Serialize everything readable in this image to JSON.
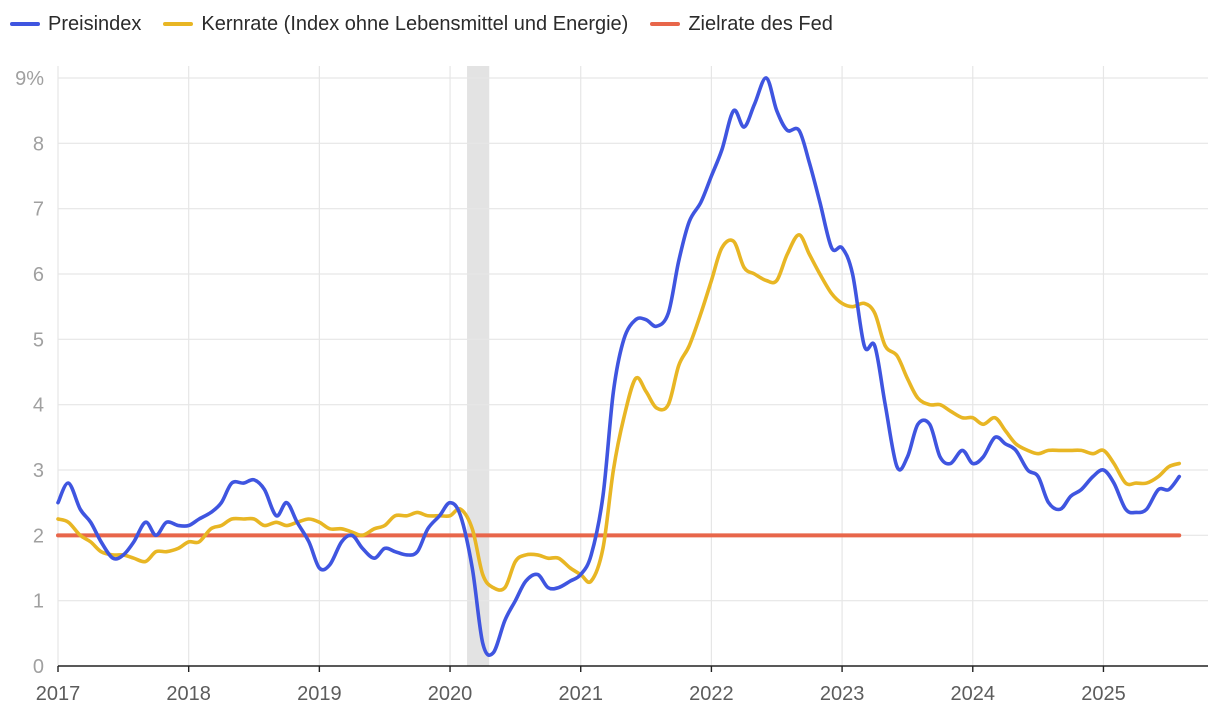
{
  "legend": {
    "items": [
      {
        "label": "Preisindex",
        "color": "#3f55e0"
      },
      {
        "label": "Kernrate (Index ohne Lebensmittel und Energie)",
        "color": "#e8b624"
      },
      {
        "label": "Zielrate des Fed",
        "color": "#e8664a"
      }
    ]
  },
  "chart_data": {
    "type": "line",
    "title": "",
    "xlabel": "",
    "ylabel": "",
    "ylim": [
      0,
      9
    ],
    "xlim": [
      2017.0,
      2025.8
    ],
    "grid": true,
    "legend_position": "top-left",
    "y_ticks": [
      "0",
      "1",
      "2",
      "3",
      "4",
      "5",
      "6",
      "7",
      "8",
      "9%"
    ],
    "x_ticks": [
      "2017",
      "2018",
      "2019",
      "2020",
      "2021",
      "2022",
      "2023",
      "2024",
      "2025"
    ],
    "recession_band": {
      "start": 2020.13,
      "end": 2020.3
    },
    "series": [
      {
        "name": "Preisindex",
        "color": "#3f55e0",
        "points": [
          [
            2017.0,
            2.5
          ],
          [
            2017.08,
            2.8
          ],
          [
            2017.17,
            2.4
          ],
          [
            2017.25,
            2.2
          ],
          [
            2017.33,
            1.9
          ],
          [
            2017.42,
            1.65
          ],
          [
            2017.5,
            1.7
          ],
          [
            2017.58,
            1.9
          ],
          [
            2017.67,
            2.2
          ],
          [
            2017.75,
            2.0
          ],
          [
            2017.83,
            2.2
          ],
          [
            2017.92,
            2.15
          ],
          [
            2018.0,
            2.15
          ],
          [
            2018.08,
            2.25
          ],
          [
            2018.17,
            2.35
          ],
          [
            2018.25,
            2.5
          ],
          [
            2018.33,
            2.8
          ],
          [
            2018.42,
            2.8
          ],
          [
            2018.5,
            2.85
          ],
          [
            2018.58,
            2.7
          ],
          [
            2018.67,
            2.3
          ],
          [
            2018.75,
            2.5
          ],
          [
            2018.83,
            2.2
          ],
          [
            2018.92,
            1.9
          ],
          [
            2019.0,
            1.5
          ],
          [
            2019.08,
            1.55
          ],
          [
            2019.17,
            1.9
          ],
          [
            2019.25,
            2.0
          ],
          [
            2019.33,
            1.8
          ],
          [
            2019.42,
            1.65
          ],
          [
            2019.5,
            1.8
          ],
          [
            2019.58,
            1.75
          ],
          [
            2019.67,
            1.7
          ],
          [
            2019.75,
            1.75
          ],
          [
            2019.83,
            2.1
          ],
          [
            2019.92,
            2.3
          ],
          [
            2020.0,
            2.5
          ],
          [
            2020.08,
            2.3
          ],
          [
            2020.17,
            1.5
          ],
          [
            2020.25,
            0.35
          ],
          [
            2020.33,
            0.2
          ],
          [
            2020.42,
            0.7
          ],
          [
            2020.5,
            1.0
          ],
          [
            2020.58,
            1.3
          ],
          [
            2020.67,
            1.4
          ],
          [
            2020.75,
            1.2
          ],
          [
            2020.83,
            1.2
          ],
          [
            2020.92,
            1.3
          ],
          [
            2021.0,
            1.4
          ],
          [
            2021.08,
            1.7
          ],
          [
            2021.17,
            2.6
          ],
          [
            2021.25,
            4.2
          ],
          [
            2021.33,
            5.0
          ],
          [
            2021.42,
            5.3
          ],
          [
            2021.5,
            5.3
          ],
          [
            2021.58,
            5.2
          ],
          [
            2021.67,
            5.4
          ],
          [
            2021.75,
            6.2
          ],
          [
            2021.83,
            6.8
          ],
          [
            2021.92,
            7.1
          ],
          [
            2022.0,
            7.5
          ],
          [
            2022.08,
            7.9
          ],
          [
            2022.17,
            8.5
          ],
          [
            2022.25,
            8.25
          ],
          [
            2022.33,
            8.6
          ],
          [
            2022.42,
            9.0
          ],
          [
            2022.5,
            8.5
          ],
          [
            2022.58,
            8.2
          ],
          [
            2022.67,
            8.2
          ],
          [
            2022.75,
            7.7
          ],
          [
            2022.83,
            7.1
          ],
          [
            2022.92,
            6.4
          ],
          [
            2023.0,
            6.4
          ],
          [
            2023.08,
            6.0
          ],
          [
            2023.17,
            4.9
          ],
          [
            2023.25,
            4.9
          ],
          [
            2023.33,
            4.0
          ],
          [
            2023.42,
            3.05
          ],
          [
            2023.5,
            3.2
          ],
          [
            2023.58,
            3.7
          ],
          [
            2023.67,
            3.7
          ],
          [
            2023.75,
            3.2
          ],
          [
            2023.83,
            3.1
          ],
          [
            2023.92,
            3.3
          ],
          [
            2024.0,
            3.1
          ],
          [
            2024.08,
            3.2
          ],
          [
            2024.17,
            3.5
          ],
          [
            2024.25,
            3.4
          ],
          [
            2024.33,
            3.3
          ],
          [
            2024.42,
            3.0
          ],
          [
            2024.5,
            2.9
          ],
          [
            2024.58,
            2.5
          ],
          [
            2024.67,
            2.4
          ],
          [
            2024.75,
            2.6
          ],
          [
            2024.83,
            2.7
          ],
          [
            2024.92,
            2.9
          ],
          [
            2025.0,
            3.0
          ],
          [
            2025.08,
            2.8
          ],
          [
            2025.17,
            2.4
          ],
          [
            2025.25,
            2.35
          ],
          [
            2025.33,
            2.4
          ],
          [
            2025.42,
            2.7
          ],
          [
            2025.5,
            2.7
          ],
          [
            2025.58,
            2.9
          ]
        ]
      },
      {
        "name": "Kernrate (Index ohne Lebensmittel und Energie)",
        "color": "#e8b624",
        "points": [
          [
            2017.0,
            2.25
          ],
          [
            2017.08,
            2.2
          ],
          [
            2017.17,
            2.0
          ],
          [
            2017.25,
            1.9
          ],
          [
            2017.33,
            1.75
          ],
          [
            2017.42,
            1.7
          ],
          [
            2017.5,
            1.7
          ],
          [
            2017.58,
            1.65
          ],
          [
            2017.67,
            1.6
          ],
          [
            2017.75,
            1.75
          ],
          [
            2017.83,
            1.75
          ],
          [
            2017.92,
            1.8
          ],
          [
            2018.0,
            1.9
          ],
          [
            2018.08,
            1.9
          ],
          [
            2018.17,
            2.1
          ],
          [
            2018.25,
            2.15
          ],
          [
            2018.33,
            2.25
          ],
          [
            2018.42,
            2.25
          ],
          [
            2018.5,
            2.25
          ],
          [
            2018.58,
            2.15
          ],
          [
            2018.67,
            2.2
          ],
          [
            2018.75,
            2.15
          ],
          [
            2018.83,
            2.2
          ],
          [
            2018.92,
            2.25
          ],
          [
            2019.0,
            2.2
          ],
          [
            2019.08,
            2.1
          ],
          [
            2019.17,
            2.1
          ],
          [
            2019.25,
            2.05
          ],
          [
            2019.33,
            2.0
          ],
          [
            2019.42,
            2.1
          ],
          [
            2019.5,
            2.15
          ],
          [
            2019.58,
            2.3
          ],
          [
            2019.67,
            2.3
          ],
          [
            2019.75,
            2.35
          ],
          [
            2019.83,
            2.3
          ],
          [
            2019.92,
            2.3
          ],
          [
            2020.0,
            2.3
          ],
          [
            2020.08,
            2.4
          ],
          [
            2020.17,
            2.1
          ],
          [
            2020.25,
            1.4
          ],
          [
            2020.33,
            1.2
          ],
          [
            2020.42,
            1.2
          ],
          [
            2020.5,
            1.6
          ],
          [
            2020.58,
            1.7
          ],
          [
            2020.67,
            1.7
          ],
          [
            2020.75,
            1.65
          ],
          [
            2020.83,
            1.65
          ],
          [
            2020.92,
            1.5
          ],
          [
            2021.0,
            1.4
          ],
          [
            2021.08,
            1.3
          ],
          [
            2021.17,
            1.8
          ],
          [
            2021.25,
            3.0
          ],
          [
            2021.33,
            3.8
          ],
          [
            2021.42,
            4.4
          ],
          [
            2021.5,
            4.2
          ],
          [
            2021.58,
            3.95
          ],
          [
            2021.67,
            4.0
          ],
          [
            2021.75,
            4.6
          ],
          [
            2021.83,
            4.9
          ],
          [
            2021.92,
            5.4
          ],
          [
            2022.0,
            5.9
          ],
          [
            2022.08,
            6.4
          ],
          [
            2022.17,
            6.5
          ],
          [
            2022.25,
            6.1
          ],
          [
            2022.33,
            6.0
          ],
          [
            2022.42,
            5.9
          ],
          [
            2022.5,
            5.9
          ],
          [
            2022.58,
            6.3
          ],
          [
            2022.67,
            6.6
          ],
          [
            2022.75,
            6.3
          ],
          [
            2022.83,
            6.0
          ],
          [
            2022.92,
            5.7
          ],
          [
            2023.0,
            5.55
          ],
          [
            2023.08,
            5.5
          ],
          [
            2023.17,
            5.55
          ],
          [
            2023.25,
            5.4
          ],
          [
            2023.33,
            4.9
          ],
          [
            2023.42,
            4.75
          ],
          [
            2023.5,
            4.4
          ],
          [
            2023.58,
            4.1
          ],
          [
            2023.67,
            4.0
          ],
          [
            2023.75,
            4.0
          ],
          [
            2023.83,
            3.9
          ],
          [
            2023.92,
            3.8
          ],
          [
            2024.0,
            3.8
          ],
          [
            2024.08,
            3.7
          ],
          [
            2024.17,
            3.8
          ],
          [
            2024.25,
            3.6
          ],
          [
            2024.33,
            3.4
          ],
          [
            2024.42,
            3.3
          ],
          [
            2024.5,
            3.25
          ],
          [
            2024.58,
            3.3
          ],
          [
            2024.67,
            3.3
          ],
          [
            2024.75,
            3.3
          ],
          [
            2024.83,
            3.3
          ],
          [
            2024.92,
            3.25
          ],
          [
            2025.0,
            3.3
          ],
          [
            2025.08,
            3.1
          ],
          [
            2025.17,
            2.8
          ],
          [
            2025.25,
            2.8
          ],
          [
            2025.33,
            2.8
          ],
          [
            2025.42,
            2.9
          ],
          [
            2025.5,
            3.05
          ],
          [
            2025.58,
            3.1
          ]
        ]
      },
      {
        "name": "Zielrate des Fed",
        "color": "#e8664a",
        "points": [
          [
            2017.0,
            2.0
          ],
          [
            2025.58,
            2.0
          ]
        ]
      }
    ]
  }
}
